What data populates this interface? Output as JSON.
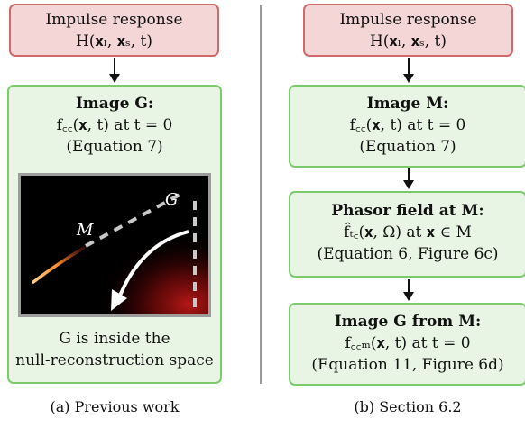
{
  "left": {
    "impulse": {
      "title": "Impulse response",
      "formula": "H(𝐱ₗ, 𝐱ₛ, t)"
    },
    "image": {
      "title": "Image G:",
      "formula": "f꜀꜀(𝐱, t) at t = 0",
      "ref": "(Equation 7)",
      "label_g": "G",
      "label_m": "M",
      "caption_line1": "G is inside the",
      "caption_line2": "null-reconstruction space"
    },
    "caption": "(a) Previous work"
  },
  "right": {
    "impulse": {
      "title": "Impulse response",
      "formula": "H(𝐱ₗ, 𝐱ₛ, t)"
    },
    "image_m": {
      "title": "Image M:",
      "formula": "f꜀꜀(𝐱, t) at t = 0",
      "ref": "(Equation 7)"
    },
    "phasor": {
      "title": "Phasor field at M:",
      "formula": "f̂ₜ꜀(𝐱, Ω) at 𝐱 ∈ M",
      "ref": "(Equation 6, Figure 6c)"
    },
    "image_g": {
      "title": "Image G from M:",
      "formula": "f꜀꜀ₘ(𝐱, t) at t = 0",
      "ref": "(Equation 11, Figure 6d)"
    },
    "caption": "(b) Section 6.2"
  }
}
